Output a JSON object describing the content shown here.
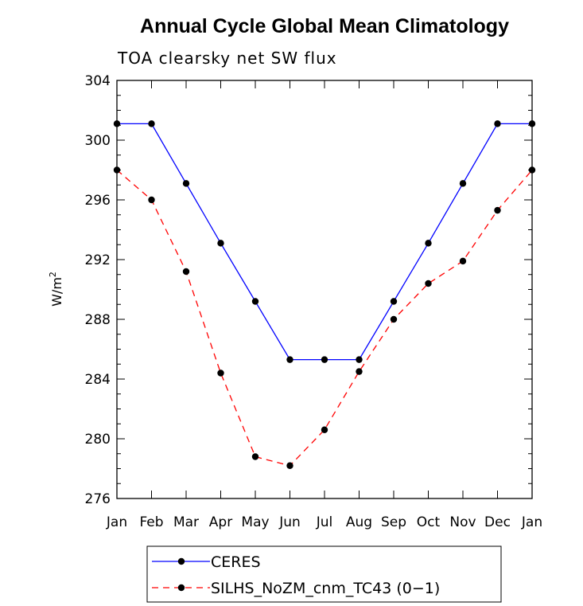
{
  "chart_data": {
    "type": "line",
    "title": "Annual Cycle Global Mean Climatology",
    "subtitle": "TOA clearsky net SW flux",
    "xlabel": "",
    "ylabel": "W/m",
    "ylabel_superscript": "2",
    "categories": [
      "Jan",
      "Feb",
      "Mar",
      "Apr",
      "May",
      "Jun",
      "Jul",
      "Aug",
      "Sep",
      "Oct",
      "Nov",
      "Dec",
      "Jan"
    ],
    "ylim": [
      276,
      304
    ],
    "yticks": [
      "276",
      "280",
      "284",
      "288",
      "292",
      "296",
      "300",
      "304"
    ],
    "grid": false,
    "legend_position": "bottom",
    "series": [
      {
        "name": "CERES",
        "color": "#0000ff",
        "line_style": "solid",
        "marker": "filled-circle",
        "values": [
          301.1,
          301.1,
          297.1,
          293.1,
          289.2,
          285.3,
          285.3,
          285.3,
          289.2,
          293.1,
          297.1,
          301.1,
          301.1
        ]
      },
      {
        "name": "SILHS_NoZM_cnm_TC43 (0−1)",
        "color": "#ff0000",
        "line_style": "dashed",
        "marker": "filled-circle",
        "values": [
          298.0,
          296.0,
          291.2,
          284.4,
          278.8,
          278.2,
          280.6,
          284.5,
          288.0,
          290.4,
          291.9,
          295.3,
          298.0
        ]
      }
    ]
  }
}
